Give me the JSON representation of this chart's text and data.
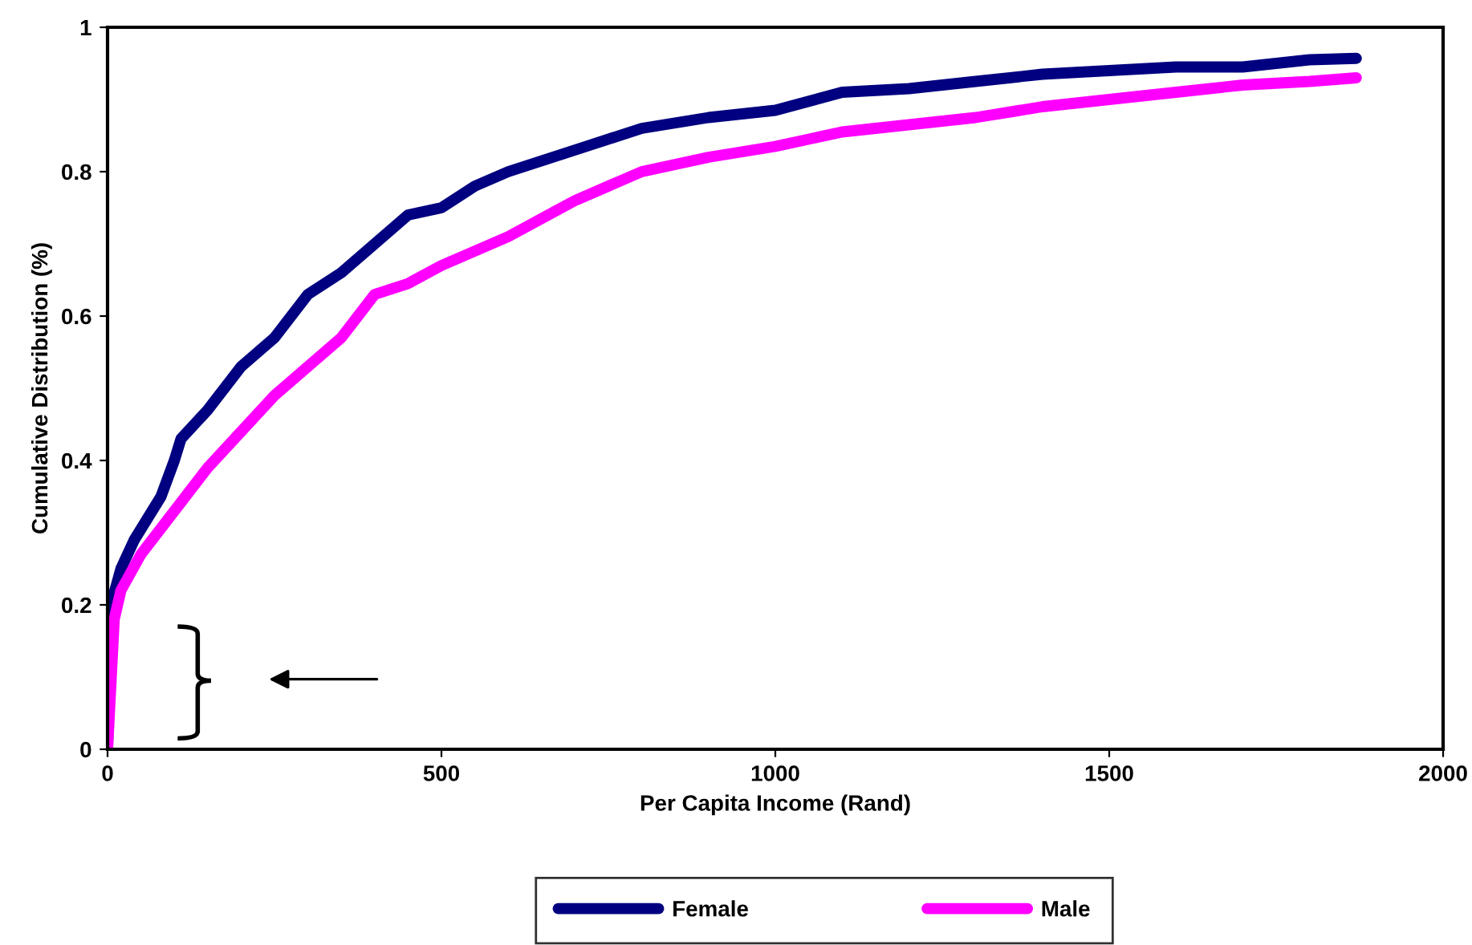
{
  "chart_data": {
    "type": "line",
    "xlabel": "Per Capita Income (Rand)",
    "ylabel": "Cumulative Distribution (%)",
    "xlim": [
      0,
      2000
    ],
    "xticks": [
      0,
      500,
      1000,
      1500,
      2000
    ],
    "ylim": [
      0,
      1
    ],
    "yticks": [
      0,
      0.2,
      0.4,
      0.6,
      0.8,
      1
    ],
    "grid": false,
    "legend": "bottom",
    "marker": "none",
    "line_style": "solid",
    "series": [
      {
        "name": "Female",
        "color": "#000080",
        "x": [
          0,
          5,
          20,
          40,
          60,
          80,
          100,
          110,
          150,
          200,
          250,
          300,
          350,
          400,
          450,
          500,
          550,
          600,
          700,
          800,
          900,
          1000,
          1100,
          1200,
          1300,
          1400,
          1500,
          1600,
          1700,
          1800,
          1870
        ],
        "values": [
          0,
          0.2,
          0.25,
          0.29,
          0.32,
          0.35,
          0.4,
          0.43,
          0.47,
          0.53,
          0.57,
          0.63,
          0.66,
          0.7,
          0.74,
          0.75,
          0.78,
          0.8,
          0.83,
          0.86,
          0.875,
          0.885,
          0.91,
          0.915,
          0.925,
          0.935,
          0.94,
          0.945,
          0.945,
          0.955,
          0.957
        ]
      },
      {
        "name": "Male",
        "color": "#ff00ff",
        "x": [
          0,
          10,
          20,
          50,
          100,
          150,
          200,
          250,
          300,
          350,
          400,
          450,
          500,
          600,
          700,
          800,
          900,
          1000,
          1100,
          1200,
          1300,
          1400,
          1500,
          1600,
          1700,
          1800,
          1870
        ],
        "values": [
          0,
          0.18,
          0.22,
          0.27,
          0.33,
          0.39,
          0.44,
          0.49,
          0.53,
          0.57,
          0.63,
          0.645,
          0.67,
          0.71,
          0.76,
          0.8,
          0.82,
          0.835,
          0.855,
          0.865,
          0.875,
          0.89,
          0.9,
          0.91,
          0.92,
          0.925,
          0.93
        ]
      }
    ]
  }
}
